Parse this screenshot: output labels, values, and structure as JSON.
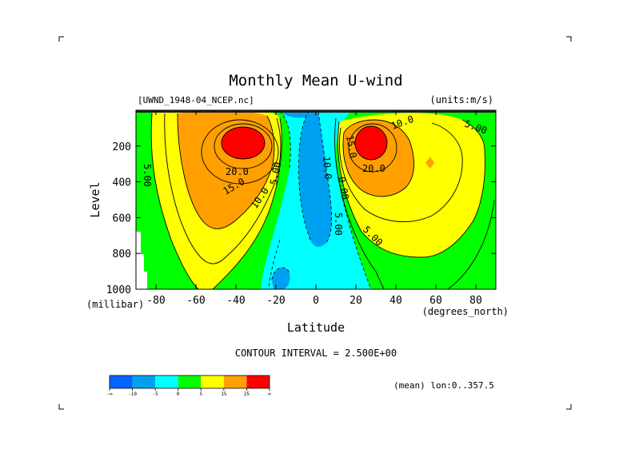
{
  "chart_data": {
    "type": "contour",
    "title": "Monthly Mean U-wind",
    "dataset_label": "[UWND_1948-04_NCEP.nc]",
    "units_label": "(units:m/s)",
    "xlabel": "Latitude",
    "xunit_label": "(degrees_north)",
    "ylabel": "Level",
    "yunit_label": "(millibar)",
    "xlim": [
      -90,
      90
    ],
    "ylim": [
      1000,
      0
    ],
    "x_ticks": [
      -80,
      -60,
      -40,
      -20,
      0,
      20,
      40,
      60,
      80
    ],
    "y_ticks": [
      200,
      400,
      600,
      800,
      1000
    ],
    "contour_interval_label": "CONTOUR INTERVAL = 2.500E+00",
    "footer_label": "(mean) lon:0..357.5",
    "contour_labels": [
      "5.00",
      "20.0",
      "15.0",
      "10.0",
      "5.00",
      "20.0",
      "15.0",
      "10.0",
      "10.0",
      "5.00",
      "0.00",
      "5.00",
      "5.00"
    ],
    "jets": [
      {
        "lat": -32,
        "level": 190,
        "peak_range": "25+"
      },
      {
        "lat": 27,
        "level": 190,
        "peak_range": "25+"
      }
    ],
    "colorbar": {
      "colors": [
        "#0064ff",
        "#00a0f0",
        "#00ffff",
        "#00ff00",
        "#ffff00",
        "#ffa000",
        "#ff0000"
      ],
      "tick_labels": [
        "-∞",
        "-10",
        "-5",
        "0",
        "5",
        "15",
        "25",
        "∞"
      ]
    }
  }
}
